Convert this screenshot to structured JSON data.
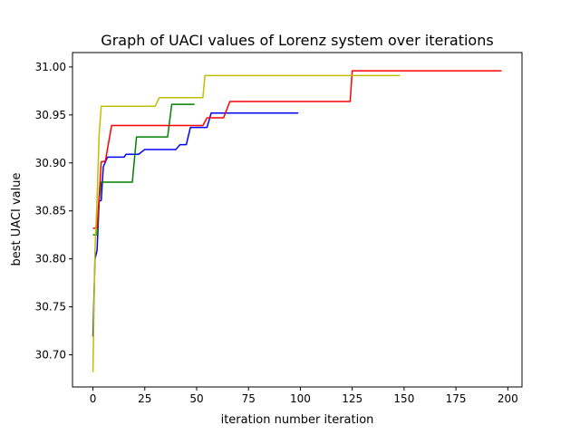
{
  "chart_data": {
    "type": "line",
    "title": "Graph of UACI values of Lorenz system over iterations",
    "xlabel": "iteration number iteration",
    "ylabel": "best UACI value",
    "xlim": [
      -9.85,
      206.85
    ],
    "ylim": [
      30.6665,
      31.015
    ],
    "xticks": [
      0,
      25,
      50,
      75,
      100,
      125,
      150,
      175,
      200
    ],
    "xtick_labels": [
      "0",
      "25",
      "50",
      "75",
      "100",
      "125",
      "150",
      "175",
      "200"
    ],
    "yticks": [
      30.7,
      30.75,
      30.8,
      30.85,
      30.9,
      30.95,
      31.0
    ],
    "ytick_labels": [
      "30.70",
      "30.75",
      "30.80",
      "30.85",
      "30.90",
      "30.95",
      "31.00"
    ],
    "grid": false,
    "legend": "none",
    "series": [
      {
        "color": "#0000ff",
        "points": [
          [
            0,
            30.719
          ],
          [
            1,
            30.8
          ],
          [
            2,
            30.809
          ],
          [
            3,
            30.86
          ],
          [
            4,
            30.861
          ],
          [
            5,
            30.896
          ],
          [
            7,
            30.906
          ],
          [
            15,
            30.906
          ],
          [
            16,
            30.909
          ],
          [
            22,
            30.909
          ],
          [
            25,
            30.914
          ],
          [
            40,
            30.914
          ],
          [
            42,
            30.919
          ],
          [
            45,
            30.919
          ],
          [
            47,
            30.937
          ],
          [
            55,
            30.937
          ],
          [
            57,
            30.952
          ],
          [
            99,
            30.952
          ]
        ]
      },
      {
        "color": "#008000",
        "points": [
          [
            0,
            30.825
          ],
          [
            2,
            30.825
          ],
          [
            3,
            30.861
          ],
          [
            4,
            30.88
          ],
          [
            19,
            30.88
          ],
          [
            21,
            30.927
          ],
          [
            36,
            30.927
          ],
          [
            38,
            30.961
          ],
          [
            49,
            30.961
          ]
        ]
      },
      {
        "color": "#ff0000",
        "points": [
          [
            0,
            30.832
          ],
          [
            2,
            30.832
          ],
          [
            3,
            30.865
          ],
          [
            4,
            30.901
          ],
          [
            6,
            30.902
          ],
          [
            9,
            30.939
          ],
          [
            53,
            30.939
          ],
          [
            55,
            30.947
          ],
          [
            63,
            30.947
          ],
          [
            66,
            30.964
          ],
          [
            124,
            30.964
          ],
          [
            125,
            30.996
          ],
          [
            197,
            30.996
          ]
        ]
      },
      {
        "color": "#bfbf00",
        "points": [
          [
            0,
            30.682
          ],
          [
            1,
            30.81
          ],
          [
            2,
            30.862
          ],
          [
            3,
            30.93
          ],
          [
            4,
            30.959
          ],
          [
            30,
            30.959
          ],
          [
            32,
            30.968
          ],
          [
            53,
            30.968
          ],
          [
            54,
            30.991
          ],
          [
            148,
            30.991
          ]
        ]
      }
    ]
  }
}
